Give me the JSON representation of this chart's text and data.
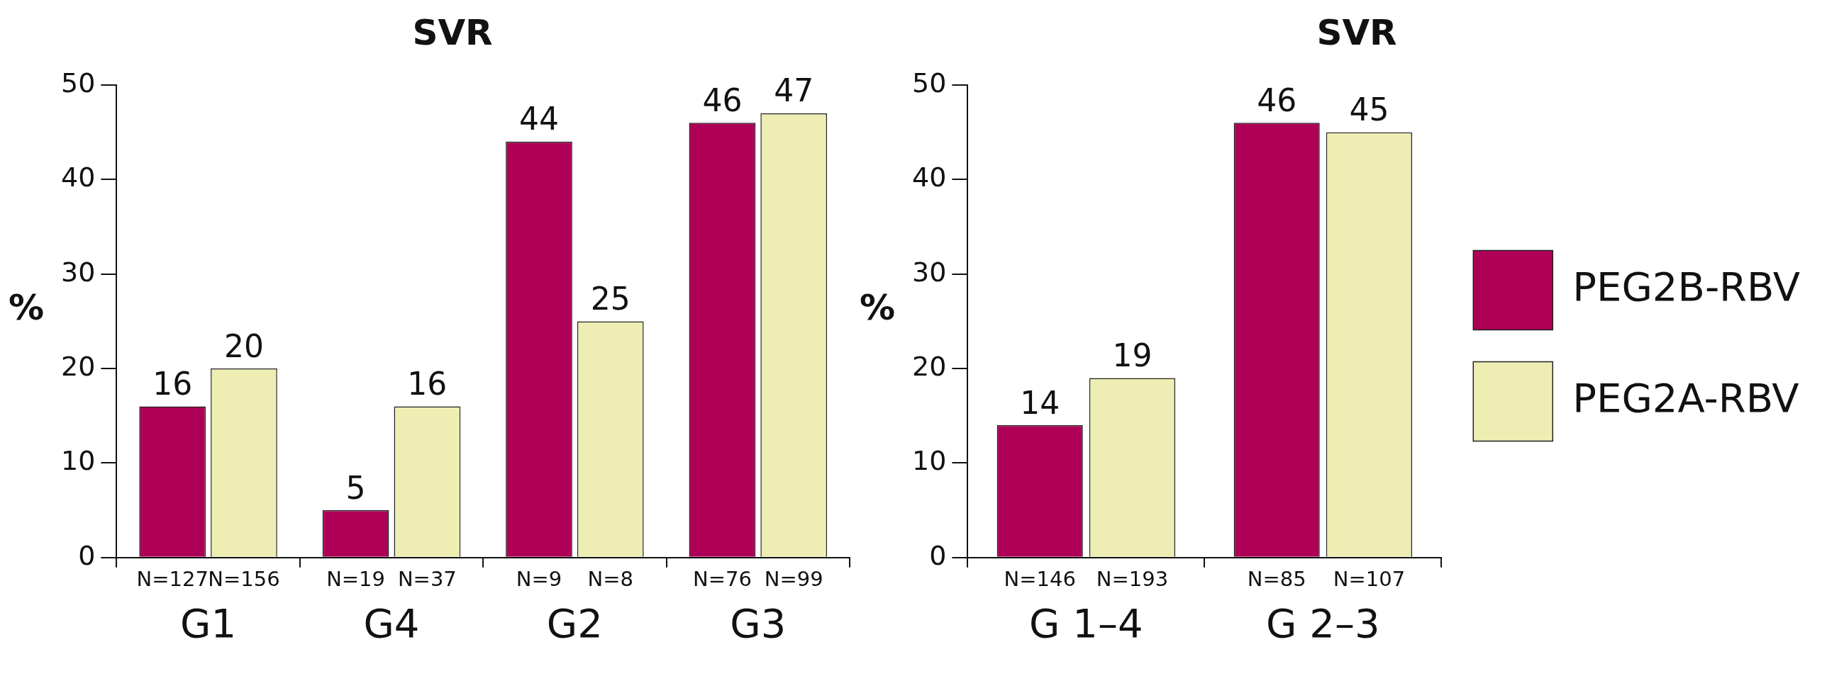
{
  "chart_data": [
    {
      "type": "bar",
      "title": "SVR",
      "ylabel": "%",
      "categories": [
        "G1",
        "G4",
        "G2",
        "G3"
      ],
      "series": [
        {
          "color": "#ae0057",
          "values": [
            16,
            5,
            44,
            46
          ]
        },
        {
          "color": "#eeedb3",
          "values": [
            20,
            16,
            25,
            47
          ]
        }
      ],
      "ylim": [
        0,
        50
      ],
      "yticks": [
        0,
        10,
        20,
        30,
        40,
        50
      ],
      "data_labels": true,
      "legend": false,
      "grid": false,
      "annotations": [
        "N=127",
        "N=156",
        "N=19",
        "N=37",
        "N=9",
        "N=8",
        "N=76",
        "N=99"
      ]
    },
    {
      "type": "bar",
      "title": "SVR",
      "ylabel": "%",
      "categories": [
        "G 1–4",
        "G 2–3"
      ],
      "series": [
        {
          "name": "PEG2B-RBV",
          "color": "#ae0057",
          "values": [
            14,
            46
          ]
        },
        {
          "name": "PEG2A-RBV",
          "color": "#eeedb3",
          "values": [
            19,
            45
          ]
        }
      ],
      "ylim": [
        0,
        50
      ],
      "yticks": [
        0,
        10,
        20,
        30,
        40,
        50
      ],
      "data_labels": true,
      "legend": "right",
      "grid": false,
      "annotations": [
        "N=146",
        "N=193",
        "N=85",
        "N=107"
      ]
    }
  ]
}
